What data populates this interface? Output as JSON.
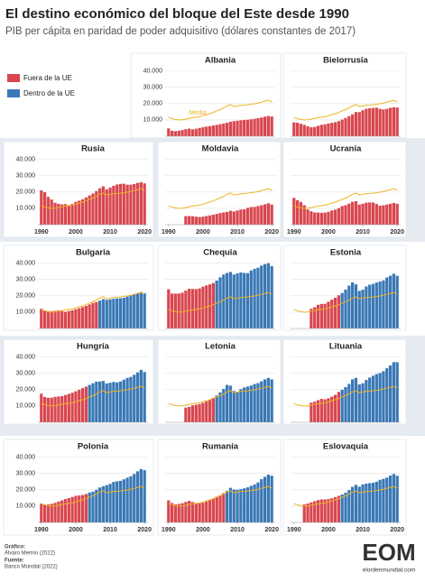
{
  "chart_data": {
    "type": "bar",
    "title": "El destino económico del bloque del Este desde 1990",
    "subtitle": "PIB per cápita en paridad de poder adquisitivo (dólares constantes de 2017)",
    "legend": [
      {
        "name": "Fuera de la UE",
        "color": "#d9474f"
      },
      {
        "name": "Dentro de la UE",
        "color": "#3a78b5"
      }
    ],
    "average": {
      "name": "Media",
      "color": "#f0b323",
      "values": [
        11500,
        10800,
        10200,
        10000,
        10100,
        10500,
        11000,
        11400,
        11700,
        11900,
        12600,
        13200,
        13800,
        14600,
        15500,
        16300,
        17400,
        18600,
        19400,
        18200,
        18500,
        19000,
        19100,
        19300,
        19600,
        19900,
        20300,
        20900,
        21500,
        22000,
        21000
      ]
    },
    "x": [
      1990,
      1991,
      1992,
      1993,
      1994,
      1995,
      1996,
      1997,
      1998,
      1999,
      2000,
      2001,
      2002,
      2003,
      2004,
      2005,
      2006,
      2007,
      2008,
      2009,
      2010,
      2011,
      2012,
      2013,
      2014,
      2015,
      2016,
      2017,
      2018,
      2019,
      2020
    ],
    "xlim": [
      1989,
      2021
    ],
    "xticks": [
      1990,
      2000,
      2010,
      2020
    ],
    "ylim": [
      0,
      42000
    ],
    "yticks": [
      {
        "value": 10000,
        "label": "10.000"
      },
      {
        "value": 20000,
        "label": "20.000"
      },
      {
        "value": 30000,
        "label": "30.000"
      },
      {
        "value": 40000,
        "label": "40.000"
      }
    ],
    "grid": true,
    "panels": [
      {
        "title": "Albania",
        "series": [
          {
            "values": [
              4800,
              3400,
              3100,
              3400,
              3800,
              4300,
              4700,
              4200,
              4600,
              5100,
              5500,
              5900,
              6200,
              6600,
              7000,
              7400,
              7800,
              8300,
              8900,
              9200,
              9500,
              9800,
              10000,
              10100,
              10400,
              10700,
              11100,
              11500,
              12000,
              12400,
              12100
            ]
          }
        ]
      },
      {
        "title": "Bielorrusia",
        "series": [
          {
            "values": [
              8500,
              8300,
              7600,
              7000,
              6100,
              5500,
              5700,
              6400,
              7000,
              7300,
              7800,
              8200,
              8600,
              9200,
              10200,
              11200,
              12300,
              13400,
              14800,
              14800,
              15900,
              16800,
              17100,
              17300,
              17500,
              16800,
              16400,
              16800,
              17400,
              17700,
              17600
            ]
          }
        ]
      },
      {
        "title": "Rusia",
        "series": [
          {
            "values": [
              21000,
              19900,
              17000,
              15400,
              13400,
              12800,
              12400,
              12600,
              11900,
              12700,
              14000,
              14700,
              15500,
              16700,
              17900,
              19100,
              20600,
              22300,
              23500,
              21700,
              22700,
              23800,
              24600,
              25000,
              25100,
              24500,
              24500,
              24900,
              25600,
              26000,
              25300
            ]
          }
        ]
      },
      {
        "title": "Moldavia",
        "series": [
          {
            "values": [
              null,
              null,
              null,
              null,
              null,
              5200,
              5300,
              5200,
              4900,
              4700,
              4900,
              5300,
              5700,
              6100,
              6600,
              7100,
              7500,
              7800,
              8500,
              8100,
              8700,
              9300,
              9400,
              10300,
              10800,
              10900,
              11400,
              11900,
              12500,
              13100,
              12300
            ]
          }
        ]
      },
      {
        "title": "Ucrania",
        "series": [
          {
            "values": [
              16400,
              15000,
              13900,
              11900,
              9300,
              8200,
              7500,
              7400,
              7300,
              7400,
              7900,
              8700,
              9200,
              10100,
              11400,
              11900,
              12900,
              14000,
              14400,
              12300,
              12800,
              13500,
              13600,
              13600,
              12700,
              11600,
              11900,
              12300,
              12800,
              13300,
              12800
            ]
          }
        ]
      },
      {
        "title": "Bulgaria",
        "series": [
          {
            "values": [
              12000,
              11000,
              10600,
              10600,
              10800,
              11100,
              10600,
              10200,
              10700,
              11100,
              11800,
              12400,
              13100,
              13800,
              14700,
              15600,
              16200,
              null,
              null,
              null,
              null,
              null,
              null,
              null,
              null,
              null,
              null,
              null,
              null,
              null,
              null
            ]
          },
          {
            "values": [
              null,
              null,
              null,
              null,
              null,
              null,
              null,
              null,
              null,
              null,
              null,
              null,
              null,
              null,
              null,
              null,
              null,
              17000,
              18000,
              17500,
              17800,
              18200,
              18400,
              18500,
              18800,
              19500,
              20200,
              20900,
              21500,
              22300,
              21600
            ]
          }
        ]
      },
      {
        "title": "Chequia",
        "series": [
          {
            "values": [
              24000,
              21400,
              21300,
              21400,
              21900,
              23200,
              24300,
              24200,
              24100,
              24500,
              25600,
              26400,
              27000,
              27800,
              null,
              null,
              null,
              null,
              null,
              null,
              null,
              null,
              null,
              null,
              null,
              null,
              null,
              null,
              null,
              null,
              null
            ]
          },
          {
            "values": [
              null,
              null,
              null,
              null,
              null,
              null,
              null,
              null,
              null,
              null,
              null,
              null,
              null,
              null,
              29300,
              31300,
              33000,
              34000,
              34600,
              33000,
              33700,
              34300,
              34000,
              33900,
              35500,
              36500,
              37200,
              38500,
              39400,
              40000,
              38200
            ]
          }
        ]
      },
      {
        "title": "Estonia",
        "series": [
          {
            "values": [
              null,
              null,
              null,
              null,
              null,
              12000,
              13000,
              14500,
              15000,
              15100,
              16400,
              17600,
              18800,
              20300,
              null,
              null,
              null,
              null,
              null,
              null,
              null,
              null,
              null,
              null,
              null,
              null,
              null,
              null,
              null,
              null,
              null
            ]
          },
          {
            "values": [
              null,
              null,
              null,
              null,
              null,
              null,
              null,
              null,
              null,
              null,
              null,
              null,
              null,
              null,
              21700,
              23800,
              26200,
              28200,
              27000,
              23000,
              23700,
              25700,
              26800,
              27300,
              28100,
              28700,
              29400,
              31200,
              32300,
              33500,
              32300
            ]
          }
        ]
      },
      {
        "title": "Hungría",
        "series": [
          {
            "values": [
              17500,
              15500,
              15000,
              15100,
              15600,
              15800,
              16000,
              16700,
              17400,
              18100,
              19000,
              19900,
              20900,
              21800,
              null,
              null,
              null,
              null,
              null,
              null,
              null,
              null,
              null,
              null,
              null,
              null,
              null,
              null,
              null,
              null,
              null
            ]
          },
          {
            "values": [
              null,
              null,
              null,
              null,
              null,
              null,
              null,
              null,
              null,
              null,
              null,
              null,
              null,
              null,
              22900,
              23900,
              24900,
              25000,
              25300,
              23800,
              24200,
              24700,
              24400,
              25000,
              26100,
              27200,
              27800,
              29100,
              30600,
              32100,
              30800
            ]
          }
        ]
      },
      {
        "title": "Letonia",
        "series": [
          {
            "values": [
              null,
              null,
              null,
              null,
              null,
              9000,
              9400,
              10400,
              10800,
              11200,
              11900,
              12800,
              13800,
              15000,
              null,
              null,
              null,
              null,
              null,
              null,
              null,
              null,
              null,
              null,
              null,
              null,
              null,
              null,
              null,
              null,
              null
            ]
          },
          {
            "values": [
              null,
              null,
              null,
              null,
              null,
              null,
              null,
              null,
              null,
              null,
              null,
              null,
              null,
              null,
              16400,
              18300,
              20400,
              22900,
              22400,
              19200,
              18600,
              20300,
              21300,
              21900,
              22500,
              23400,
              24000,
              25100,
              26300,
              27200,
              26300
            ]
          }
        ]
      },
      {
        "title": "Lituania",
        "series": [
          {
            "values": [
              null,
              null,
              null,
              null,
              null,
              12000,
              12600,
              13500,
              14300,
              14100,
              14700,
              15700,
              16800,
              18600,
              null,
              null,
              null,
              null,
              null,
              null,
              null,
              null,
              null,
              null,
              null,
              null,
              null,
              null,
              null,
              null,
              null
            ]
          },
          {
            "values": [
              null,
              null,
              null,
              null,
              null,
              null,
              null,
              null,
              null,
              null,
              null,
              null,
              null,
              null,
              19900,
              21600,
              23500,
              26300,
              27200,
              23200,
              23900,
              25900,
              27400,
              28500,
              29500,
              30200,
              31300,
              33100,
              34800,
              36800,
              36800
            ]
          }
        ]
      },
      {
        "title": "Polonia",
        "series": [
          {
            "values": [
              11500,
              10700,
              11000,
              11400,
              12000,
              12800,
              13500,
              14300,
              14900,
              15600,
              16300,
              16500,
              16800,
              17400,
              null,
              null,
              null,
              null,
              null,
              null,
              null,
              null,
              null,
              null,
              null,
              null,
              null,
              null,
              null,
              null,
              null
            ]
          },
          {
            "values": [
              null,
              null,
              null,
              null,
              null,
              null,
              null,
              null,
              null,
              null,
              null,
              null,
              null,
              null,
              18300,
              18900,
              20000,
              21400,
              22200,
              22800,
              23600,
              24800,
              25200,
              25500,
              26400,
              27400,
              28300,
              29700,
              31300,
              32700,
              32000
            ]
          }
        ]
      },
      {
        "title": "Rumanía",
        "series": [
          {
            "values": [
              13500,
              11900,
              11000,
              11300,
              11800,
              12600,
              13200,
              12500,
              11900,
              11800,
              12100,
              12900,
              13700,
              14500,
              15800,
              16600,
              18000,
              null,
              null,
              null,
              null,
              null,
              null,
              null,
              null,
              null,
              null,
              null,
              null,
              null,
              null
            ]
          },
          {
            "values": [
              null,
              null,
              null,
              null,
              null,
              null,
              null,
              null,
              null,
              null,
              null,
              null,
              null,
              null,
              null,
              null,
              null,
              19300,
              21200,
              20200,
              20000,
              20400,
              20900,
              21500,
              22400,
              23300,
              24500,
              26500,
              27900,
              29300,
              28600
            ]
          }
        ]
      },
      {
        "title": "Eslovaquia",
        "series": [
          {
            "values": [
              null,
              null,
              null,
              11000,
              11600,
              12300,
              13000,
              13700,
              14100,
              14100,
              14300,
              14800,
              15500,
              16300,
              null,
              null,
              null,
              null,
              null,
              null,
              null,
              null,
              null,
              null,
              null,
              null,
              null,
              null,
              null,
              null,
              null
            ]
          },
          {
            "values": [
              null,
              null,
              null,
              null,
              null,
              null,
              null,
              null,
              null,
              null,
              null,
              null,
              null,
              null,
              17100,
              18200,
              19800,
              21800,
              23000,
              21900,
              23300,
              23800,
              24100,
              24300,
              24900,
              26100,
              26700,
              27400,
              28700,
              29700,
              28600
            ]
          }
        ]
      }
    ]
  },
  "credits": {
    "graphic_label": "Gráfico:",
    "author": "Álvaro Merino (2022)",
    "source_label": "Fuente:",
    "source": "Banco Mundial (2022)"
  },
  "logo": {
    "text": "EOM",
    "site": "elordenmundial.com"
  }
}
